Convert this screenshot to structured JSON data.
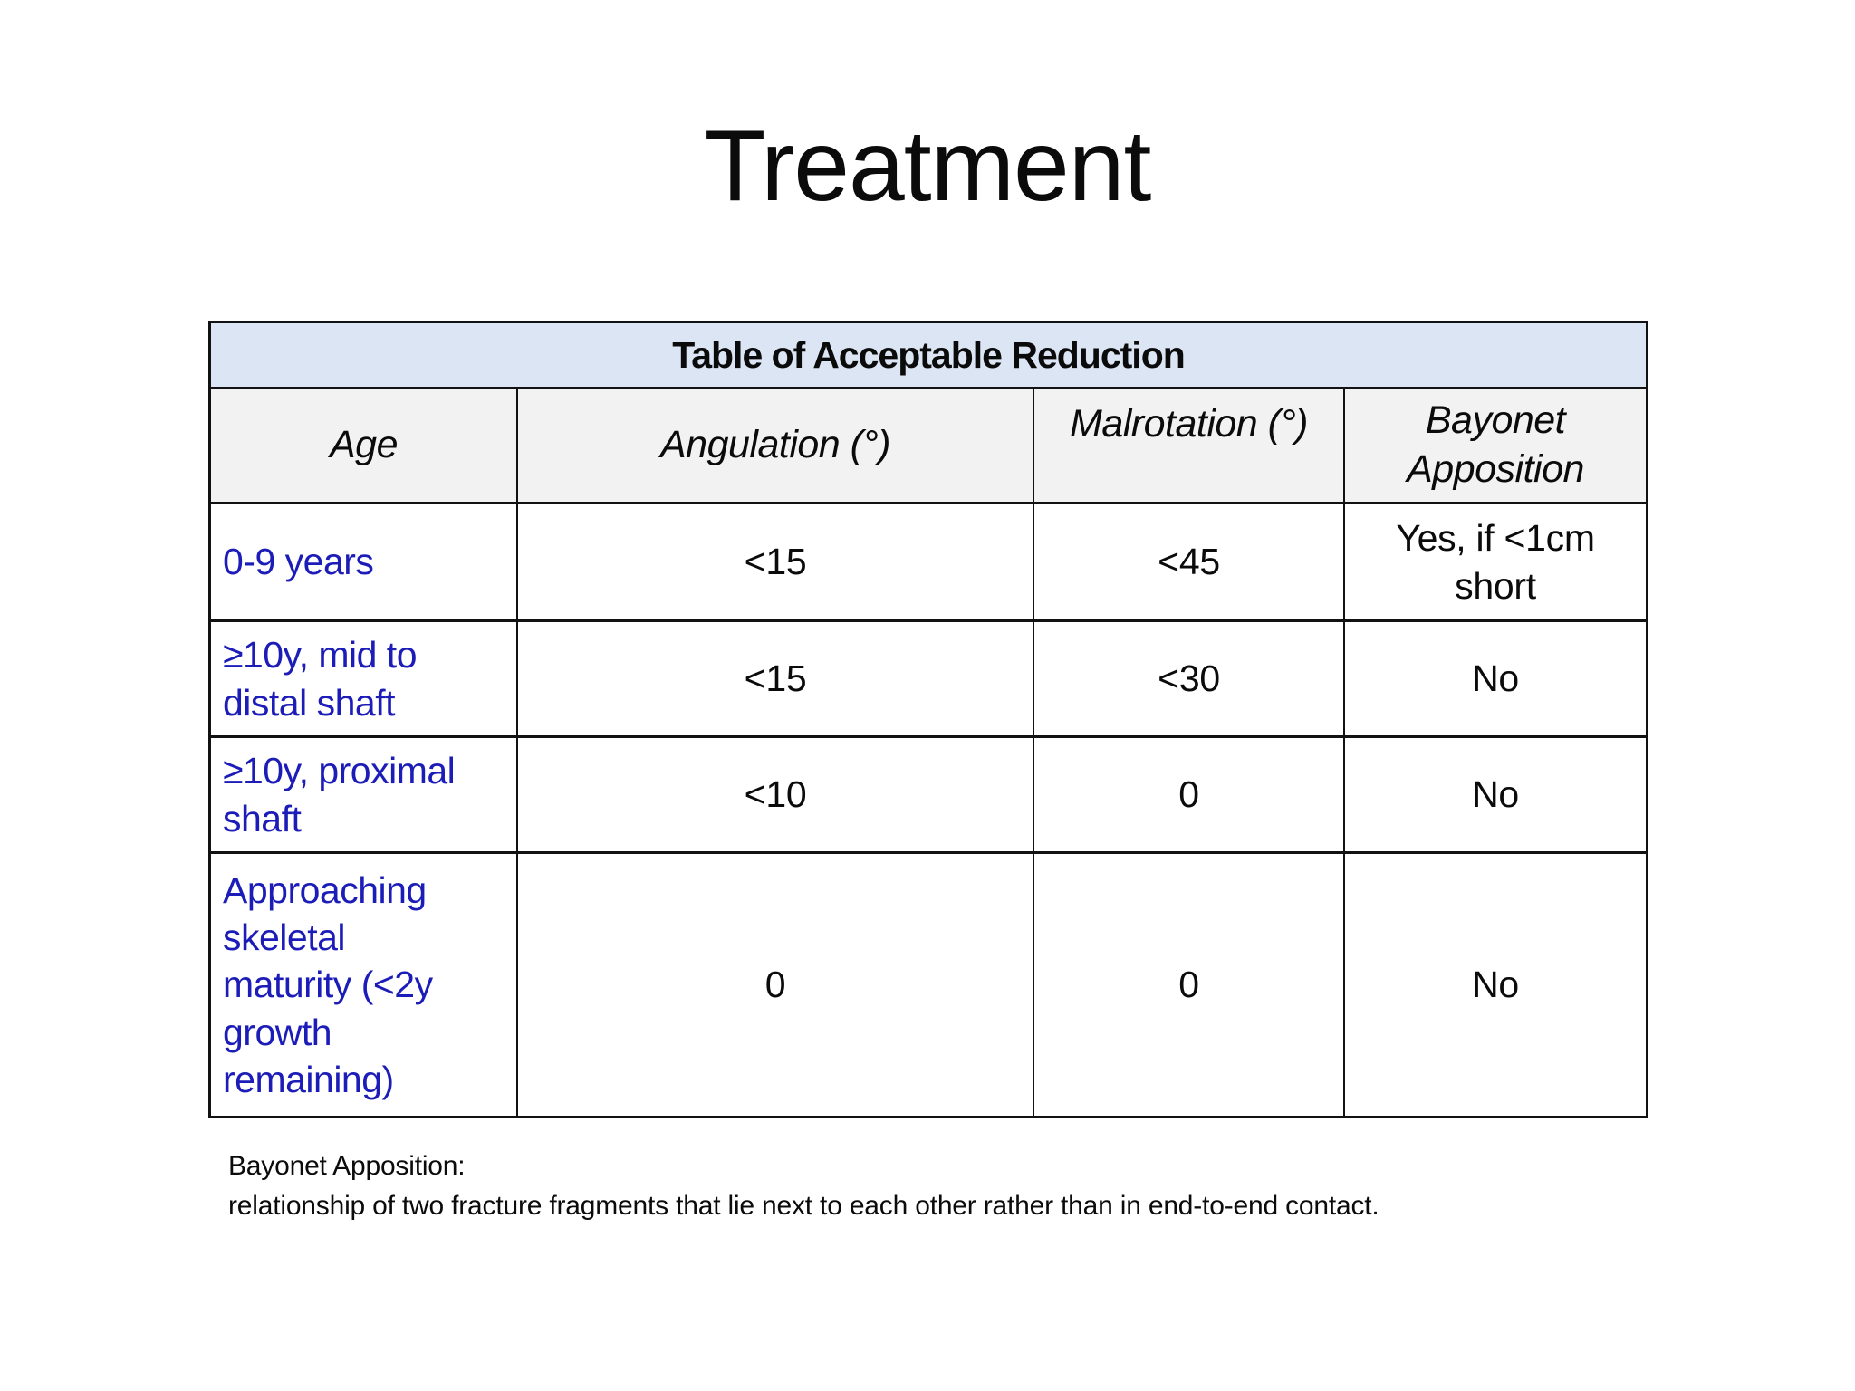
{
  "slide_title": "Treatment",
  "table": {
    "caption": "Table of Acceptable Reduction",
    "columns": [
      "Age",
      "Angulation (°)",
      "Malrotation (°)",
      "Bayonet\nApposition"
    ],
    "rows": [
      {
        "age": "0-9 years",
        "angulation": "<15",
        "malrotation": "<45",
        "bayonet": "Yes, if <1cm\nshort"
      },
      {
        "age": "≥10y, mid to\ndistal shaft",
        "angulation": "<15",
        "malrotation": "<30",
        "bayonet": "No"
      },
      {
        "age": "≥10y, proximal\nshaft",
        "angulation": "<10",
        "malrotation": "0",
        "bayonet": "No"
      },
      {
        "age": "Approaching\nskeletal\nmaturity (<2y\ngrowth\nremaining)",
        "angulation": "0",
        "malrotation": "0",
        "bayonet": "No"
      }
    ]
  },
  "footnote": {
    "term": "Bayonet Apposition:",
    "definition": "relationship of two fracture fragments that lie next to each other rather than in end-to-end contact."
  },
  "colors": {
    "background": "#ffffff",
    "text": "#0b0b0b",
    "border": "#121212",
    "table_header_fill": "#dbe5f4",
    "column_header_fill": "#f2f2f2",
    "age_text": "#1c1cb8"
  }
}
